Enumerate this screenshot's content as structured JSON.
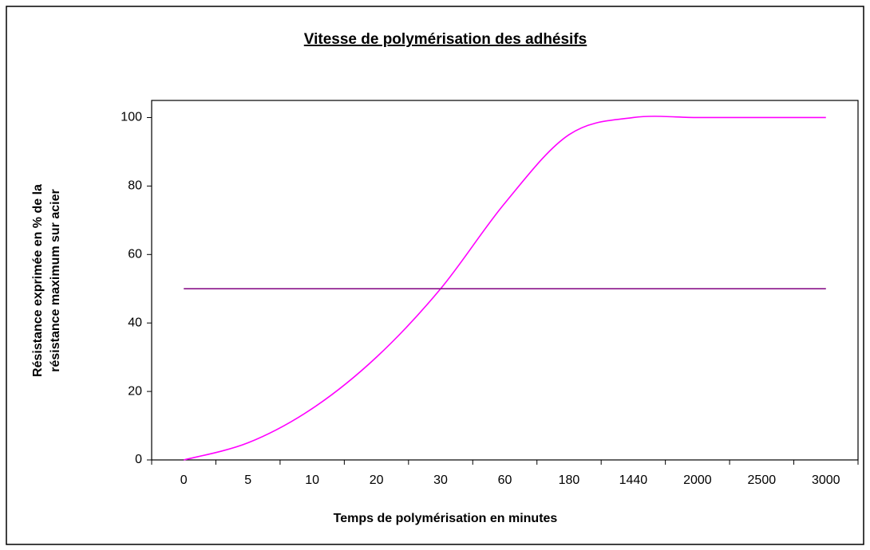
{
  "chart_data": {
    "type": "line",
    "title": "Vitesse de polymérisation des adhésifs",
    "x_label": "Temps de polymérisation en minutes",
    "y_label": [
      "Résistance exprimée en % de la",
      "résistance maximum sur acier"
    ],
    "categories": [
      "0",
      "5",
      "10",
      "20",
      "30",
      "60",
      "180",
      "1440",
      "2000",
      "2500",
      "3000"
    ],
    "series": [
      {
        "color": "#ff00ff",
        "values": [
          0,
          5,
          15,
          30,
          50,
          75,
          95,
          100,
          100,
          100,
          100
        ]
      },
      {
        "color": "#800080",
        "values": [
          50,
          50,
          50,
          50,
          50,
          50,
          50,
          50,
          50,
          50,
          50
        ]
      }
    ],
    "ylim": [
      0,
      105
    ],
    "yticks": [
      0,
      20,
      40,
      60,
      80,
      100
    ]
  }
}
